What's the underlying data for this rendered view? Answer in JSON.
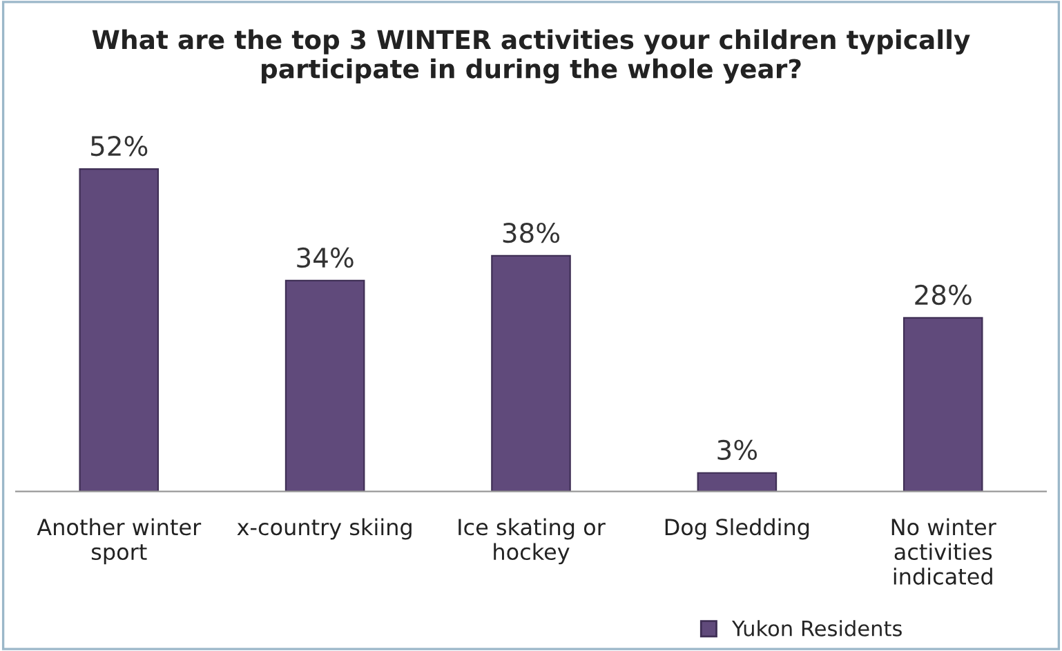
{
  "chart_data": {
    "type": "bar",
    "title": "What are the top 3 WINTER activities your children typically\nparticipate in during the whole year?",
    "categories": [
      "Another winter\nsport",
      "x-country skiing",
      "Ice skating or\nhockey",
      "Dog Sledding",
      "No winter\nactivities\nindicated"
    ],
    "series": [
      {
        "name": "Yukon Residents",
        "color": "#604a7b",
        "values": [
          52,
          34,
          38,
          3,
          28
        ],
        "value_labels": [
          "52%",
          "34%",
          "38%",
          "3%",
          "28%"
        ]
      }
    ],
    "grid": false,
    "legend": "bottom right"
  }
}
